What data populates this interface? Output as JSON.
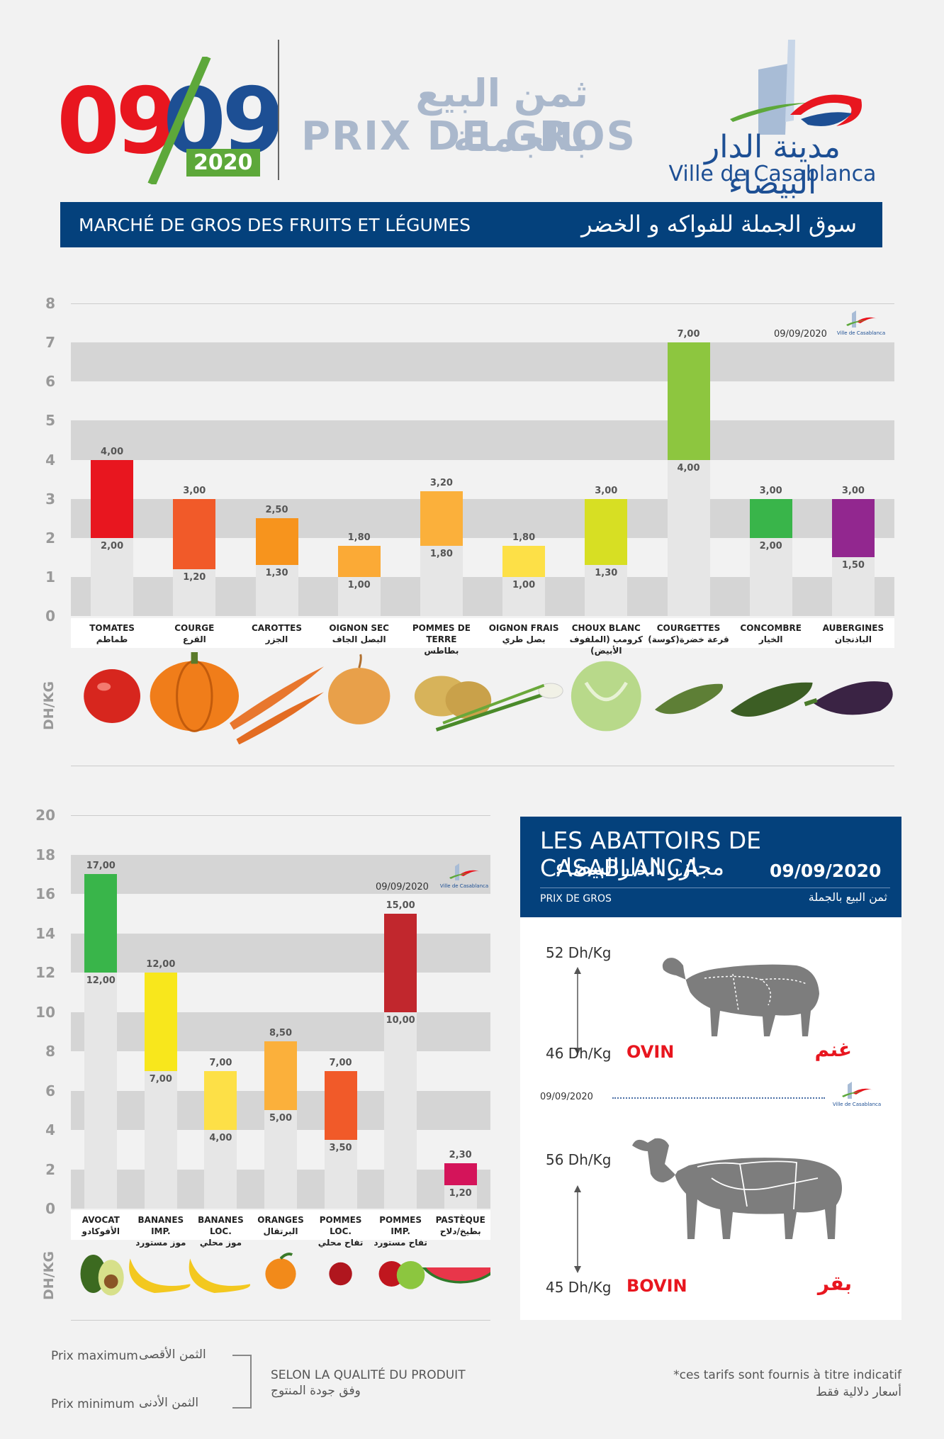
{
  "header": {
    "day1": "09",
    "day2": "09",
    "year": "2020",
    "title_ar": "ثمن البيع بالجملة",
    "title_fr": "PRIX DE GROS",
    "logo_ar": "مدينة الدار البيضاء",
    "logo_fr": "Ville de Casablanca"
  },
  "banner": {
    "fr": "MARCHÉ DE GROS DES FRUITS ET LÉGUMES",
    "ar": "سوق الجملة للفواكه و الخضر"
  },
  "colors": {
    "navy": "#04417c",
    "red": "#e8161f",
    "green": "#5da83a",
    "band": "#d5d5d5",
    "bar_base": "#e6e6e6"
  },
  "chart_data": [
    {
      "type": "bar",
      "subtype": "floating-range",
      "date": "09/09/2020",
      "ylabel": "DH/KG",
      "ylim": [
        0,
        8
      ],
      "yticks": [
        "0",
        "1",
        "2",
        "3",
        "4",
        "5",
        "6",
        "7",
        "8"
      ],
      "categories": [
        {
          "fr": "TOMATES",
          "ar": "طماطم",
          "min": 2.0,
          "max": 4.0,
          "min_label": "2,00",
          "max_label": "4,00",
          "color": "#e8161f",
          "icon": "tomato-icon"
        },
        {
          "fr": "COURGE",
          "ar": "القرع",
          "min": 1.2,
          "max": 3.0,
          "min_label": "1,20",
          "max_label": "3,00",
          "color": "#f15a29",
          "icon": "pumpkin-icon"
        },
        {
          "fr": "CAROTTES",
          "ar": "الجزر",
          "min": 1.3,
          "max": 2.5,
          "min_label": "1,30",
          "max_label": "2,50",
          "color": "#f7941d",
          "icon": "carrot-icon"
        },
        {
          "fr": "OIGNON SEC",
          "ar": "البصل الجاف",
          "min": 1.0,
          "max": 1.8,
          "min_label": "1,00",
          "max_label": "1,80",
          "color": "#fbaa36",
          "icon": "onion-icon"
        },
        {
          "fr": "POMMES DE TERRE",
          "ar": "بطاطس",
          "min": 1.8,
          "max": 3.2,
          "min_label": "1,80",
          "max_label": "3,20",
          "color": "#fbb03b",
          "icon": "potato-icon"
        },
        {
          "fr": "OIGNON FRAIS",
          "ar": "بصل طري",
          "min": 1.0,
          "max": 1.8,
          "min_label": "1,00",
          "max_label": "1,80",
          "color": "#fde047",
          "icon": "spring-onion-icon"
        },
        {
          "fr": "CHOUX BLANC",
          "ar": "كرومب (الملفوف الأبيض)",
          "min": 1.3,
          "max": 3.0,
          "min_label": "1,30",
          "max_label": "3,00",
          "color": "#d7df23",
          "icon": "cabbage-icon"
        },
        {
          "fr": "COURGETTES",
          "ar": "قرعة خضرة(كوسة)",
          "min": 4.0,
          "max": 7.0,
          "min_label": "4,00",
          "max_label": "7,00",
          "color": "#8dc63f",
          "icon": "zucchini-icon"
        },
        {
          "fr": "CONCOMBRE",
          "ar": "الخيار",
          "min": 2.0,
          "max": 3.0,
          "min_label": "2,00",
          "max_label": "3,00",
          "color": "#39b54a",
          "icon": "cucumber-icon"
        },
        {
          "fr": "AUBERGINES",
          "ar": "الباذنجان",
          "min": 1.5,
          "max": 3.0,
          "min_label": "1,50",
          "max_label": "3,00",
          "color": "#92278f",
          "icon": "eggplant-icon"
        }
      ]
    },
    {
      "type": "bar",
      "subtype": "floating-range",
      "date": "09/09/2020",
      "ylabel": "DH/KG",
      "ylim": [
        0,
        20
      ],
      "yticks": [
        "0",
        "2",
        "4",
        "6",
        "8",
        "10",
        "12",
        "14",
        "16",
        "18",
        "20"
      ],
      "categories": [
        {
          "fr": "AVOCAT",
          "ar": "الأفوكادو",
          "min": 12.0,
          "max": 17.0,
          "min_label": "12,00",
          "max_label": "17,00",
          "color": "#39b54a",
          "icon": "avocado-icon"
        },
        {
          "fr": "BANANES IMP.",
          "ar": "موز مستورد",
          "min": 7.0,
          "max": 12.0,
          "min_label": "7,00",
          "max_label": "12,00",
          "color": "#f8e71c",
          "icon": "banana-icon"
        },
        {
          "fr": "BANANES LOC.",
          "ar": "موز محلي",
          "min": 4.0,
          "max": 7.0,
          "min_label": "4,00",
          "max_label": "7,00",
          "color": "#fde047",
          "icon": "banana-icon"
        },
        {
          "fr": "ORANGES",
          "ar": "البرتقال",
          "min": 5.0,
          "max": 8.5,
          "min_label": "5,00",
          "max_label": "8,50",
          "color": "#fbb03b",
          "icon": "orange-icon"
        },
        {
          "fr": "POMMES LOC.",
          "ar": "تفاح محلي",
          "min": 3.5,
          "max": 7.0,
          "min_label": "3,50",
          "max_label": "7,00",
          "color": "#f15a29",
          "icon": "apple-icon"
        },
        {
          "fr": "POMMES IMP.",
          "ar": "تفاح مستورد",
          "min": 10.0,
          "max": 15.0,
          "min_label": "10,00",
          "max_label": "15,00",
          "color": "#c1272d",
          "icon": "apples-icon"
        },
        {
          "fr": "PASTÈQUE",
          "ar": "بطيخ/دلاح",
          "min": 1.2,
          "max": 2.3,
          "min_label": "1,20",
          "max_label": "2,30",
          "color": "#d4145a",
          "icon": "watermelon-icon"
        }
      ]
    }
  ],
  "abattoirs": {
    "title_fr": "LES ABATTOIRS DE CASABLANCA",
    "title_ar": "مجازر الدارالبيضاء",
    "date": "09/09/2020",
    "sub_fr": "PRIX DE GROS",
    "sub_ar": "ثمن البيع بالجملة",
    "mid_date": "09/09/2020",
    "ovin": {
      "max": "52 Dh/Kg",
      "min": "46 Dh/Kg",
      "fr": "OVIN",
      "ar": "غنم"
    },
    "bovin": {
      "max": "56 Dh/Kg",
      "min": "45 Dh/Kg",
      "fr": "BOVIN",
      "ar": "بقر"
    }
  },
  "legend": {
    "max_fr": "Prix maximum",
    "max_ar": "الثمن الأقصى",
    "min_fr": "Prix minimum",
    "min_ar": "الثمن الأدنى",
    "quality_fr": "SELON LA QUALITÉ DU PRODUIT",
    "quality_ar": "وفق جودة المنتوج"
  },
  "footnote": {
    "fr": "*ces tarifs sont fournis à titre indicatif",
    "ar": "أسعار دلالية فقط"
  }
}
